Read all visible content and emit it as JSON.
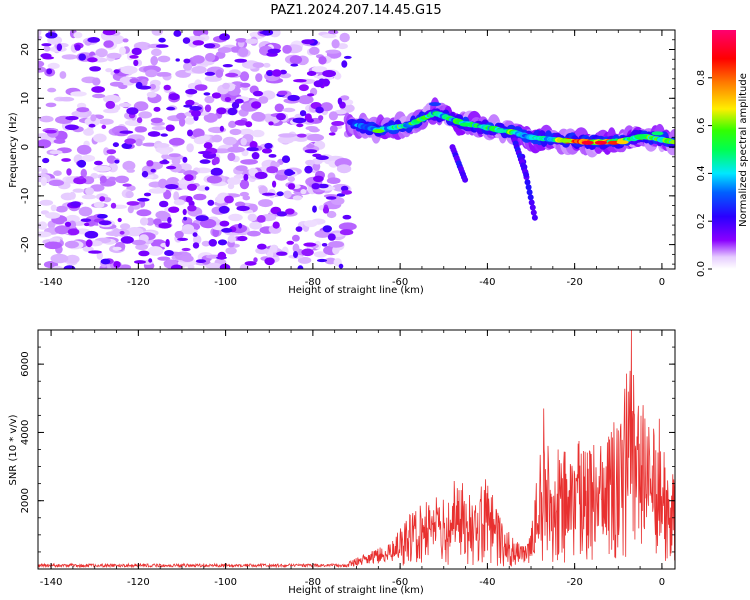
{
  "figure": {
    "title": "PAZ1.2024.207.14.45.G15"
  },
  "chart_data": [
    {
      "type": "heatmap",
      "title": "",
      "xlabel": "Height of straight line (km)",
      "ylabel": "Frequency (Hz)",
      "xlim": [
        -143,
        3
      ],
      "ylim": [
        -25,
        24
      ],
      "x_ticks": [
        -140,
        -120,
        -100,
        -80,
        -60,
        -40,
        -20,
        0
      ],
      "y_ticks": [
        -20,
        -10,
        0,
        10,
        20
      ],
      "colorbar": {
        "label": "Normalized spectral amplitude",
        "range": [
          0,
          1
        ],
        "ticks": [
          0.0,
          0.2,
          0.4,
          0.6,
          0.8
        ],
        "tick_labels": [
          "0.0",
          "0.2",
          "0.4",
          "0.6",
          "0.8"
        ],
        "colormap": "gist_rainbow (white at 0 → violet → blue → cyan → green → yellow → red → magenta)"
      },
      "regions": [
        {
          "description": "scattered low-amplitude noise",
          "x_range": [
            -143,
            -72
          ],
          "y_range": [
            -25,
            24
          ],
          "amplitude": [
            0.05,
            0.2
          ]
        },
        {
          "description": "signal trace",
          "x_range": [
            -72,
            3
          ],
          "center_frequency_path": [
            [
              -72,
              5
            ],
            [
              -65,
              3.5
            ],
            [
              -58,
              4.5
            ],
            [
              -52,
              7
            ],
            [
              -46,
              5
            ],
            [
              -40,
              4
            ],
            [
              -34,
              3
            ],
            [
              -30,
              2
            ],
            [
              -22,
              1.3
            ],
            [
              -16,
              1
            ],
            [
              -10,
              1.2
            ],
            [
              -4,
              2.2
            ],
            [
              0,
              1.5
            ],
            [
              3,
              1
            ]
          ],
          "amplitude": [
            0.2,
            0.95
          ]
        }
      ],
      "grid": false
    },
    {
      "type": "line",
      "title": "",
      "xlabel": "Height of straight line (km)",
      "ylabel": "SNR (10 * v/v)",
      "xlim": [
        -143,
        3
      ],
      "ylim": [
        0,
        7000
      ],
      "x_ticks": [
        -140,
        -120,
        -100,
        -80,
        -60,
        -40,
        -20,
        0
      ],
      "y_ticks": [
        2000,
        4000,
        6000
      ],
      "series": [
        {
          "color": "#e8302f",
          "envelope": [
            {
              "x": -143,
              "y": 120
            },
            {
              "x": -100,
              "y": 120
            },
            {
              "x": -80,
              "y": 130
            },
            {
              "x": -72,
              "y": 220
            },
            {
              "x": -68,
              "y": 450
            },
            {
              "x": -62,
              "y": 800
            },
            {
              "x": -58,
              "y": 1600
            },
            {
              "x": -55,
              "y": 1900
            },
            {
              "x": -50,
              "y": 2300
            },
            {
              "x": -46,
              "y": 2800
            },
            {
              "x": -43,
              "y": 2000
            },
            {
              "x": -40,
              "y": 2900
            },
            {
              "x": -37,
              "y": 1500
            },
            {
              "x": -34,
              "y": 900
            },
            {
              "x": -31,
              "y": 700
            },
            {
              "x": -28,
              "y": 3200
            },
            {
              "x": -27,
              "y": 4700
            },
            {
              "x": -25,
              "y": 3500
            },
            {
              "x": -22,
              "y": 3600
            },
            {
              "x": -18,
              "y": 3900
            },
            {
              "x": -14,
              "y": 3800
            },
            {
              "x": -10,
              "y": 4200
            },
            {
              "x": -7,
              "y": 7000
            },
            {
              "x": -5,
              "y": 4500
            },
            {
              "x": -3,
              "y": 4700
            },
            {
              "x": 0,
              "y": 3500
            },
            {
              "x": 2,
              "y": 3200
            },
            {
              "x": 3,
              "y": 2800
            }
          ],
          "peaks": [
            {
              "x": -27.1,
              "y": 4700
            },
            {
              "x": -7.0,
              "y": 7000
            },
            {
              "x": -4.3,
              "y": 4800
            },
            {
              "x": -11.0,
              "y": 4300
            },
            {
              "x": -0.6,
              "y": 4400
            },
            {
              "x": -1.8,
              "y": 3900
            }
          ]
        }
      ],
      "grid": false
    }
  ]
}
